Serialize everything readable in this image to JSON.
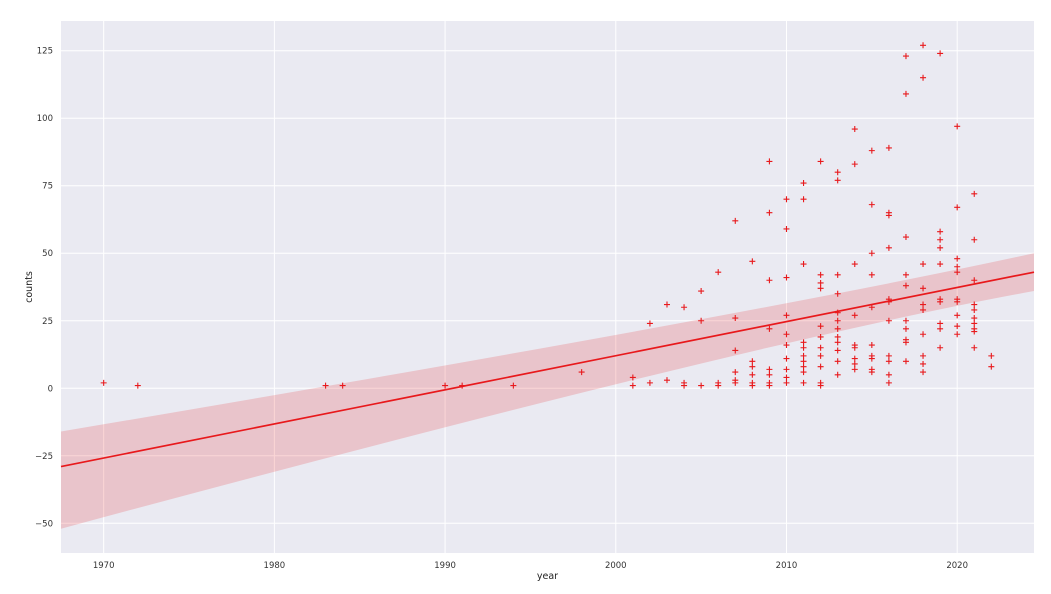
{
  "chart_data": {
    "type": "scatter",
    "xlabel": "year",
    "ylabel": "counts",
    "xlim": [
      1967.5,
      2024.5
    ],
    "ylim": [
      -61,
      136
    ],
    "x_ticks": [
      1970,
      1980,
      1990,
      2000,
      2010,
      2020
    ],
    "y_ticks": [
      -50,
      -25,
      0,
      25,
      50,
      75,
      100,
      125
    ],
    "grid": true,
    "marker": "+",
    "colors": {
      "marker": "#e8191c",
      "line": "#e8191c",
      "background": "#eaeaf2",
      "grid": "#ffffff"
    },
    "regression": {
      "x": [
        1967.5,
        2024.5
      ],
      "y": [
        -29,
        43
      ],
      "ci_lower": [
        -52,
        36
      ],
      "ci_upper": [
        -16,
        50
      ]
    },
    "points": [
      [
        1970,
        2
      ],
      [
        1972,
        1
      ],
      [
        1983,
        1
      ],
      [
        1984,
        1
      ],
      [
        1990,
        1
      ],
      [
        1991,
        1
      ],
      [
        1994,
        1
      ],
      [
        1998,
        6
      ],
      [
        2001,
        4
      ],
      [
        2001,
        1
      ],
      [
        2002,
        24
      ],
      [
        2002,
        2
      ],
      [
        2003,
        31
      ],
      [
        2003,
        3
      ],
      [
        2004,
        30
      ],
      [
        2004,
        2
      ],
      [
        2004,
        1
      ],
      [
        2005,
        36
      ],
      [
        2005,
        25
      ],
      [
        2005,
        1
      ],
      [
        2006,
        43
      ],
      [
        2006,
        2
      ],
      [
        2006,
        1
      ],
      [
        2007,
        62
      ],
      [
        2007,
        26
      ],
      [
        2007,
        14
      ],
      [
        2007,
        6
      ],
      [
        2007,
        3
      ],
      [
        2007,
        2
      ],
      [
        2008,
        47
      ],
      [
        2008,
        10
      ],
      [
        2008,
        8
      ],
      [
        2008,
        5
      ],
      [
        2008,
        2
      ],
      [
        2008,
        1
      ],
      [
        2009,
        84
      ],
      [
        2009,
        65
      ],
      [
        2009,
        40
      ],
      [
        2009,
        22
      ],
      [
        2009,
        7
      ],
      [
        2009,
        5
      ],
      [
        2009,
        2
      ],
      [
        2009,
        1
      ],
      [
        2010,
        70
      ],
      [
        2010,
        59
      ],
      [
        2010,
        41
      ],
      [
        2010,
        27
      ],
      [
        2010,
        20
      ],
      [
        2010,
        16
      ],
      [
        2010,
        11
      ],
      [
        2010,
        7
      ],
      [
        2010,
        4
      ],
      [
        2010,
        2
      ],
      [
        2011,
        76
      ],
      [
        2011,
        70
      ],
      [
        2011,
        46
      ],
      [
        2011,
        17
      ],
      [
        2011,
        15
      ],
      [
        2011,
        12
      ],
      [
        2011,
        10
      ],
      [
        2011,
        8
      ],
      [
        2011,
        6
      ],
      [
        2011,
        2
      ],
      [
        2012,
        84
      ],
      [
        2012,
        42
      ],
      [
        2012,
        39
      ],
      [
        2012,
        37
      ],
      [
        2012,
        23
      ],
      [
        2012,
        19
      ],
      [
        2012,
        15
      ],
      [
        2012,
        12
      ],
      [
        2012,
        8
      ],
      [
        2012,
        2
      ],
      [
        2012,
        1
      ],
      [
        2013,
        80
      ],
      [
        2013,
        77
      ],
      [
        2013,
        42
      ],
      [
        2013,
        35
      ],
      [
        2013,
        28
      ],
      [
        2013,
        25
      ],
      [
        2013,
        22
      ],
      [
        2013,
        19
      ],
      [
        2013,
        17
      ],
      [
        2013,
        14
      ],
      [
        2013,
        10
      ],
      [
        2013,
        5
      ],
      [
        2014,
        96
      ],
      [
        2014,
        83
      ],
      [
        2014,
        46
      ],
      [
        2014,
        27
      ],
      [
        2014,
        16
      ],
      [
        2014,
        15
      ],
      [
        2014,
        11
      ],
      [
        2014,
        9
      ],
      [
        2014,
        7
      ],
      [
        2015,
        88
      ],
      [
        2015,
        68
      ],
      [
        2015,
        50
      ],
      [
        2015,
        42
      ],
      [
        2015,
        30
      ],
      [
        2015,
        16
      ],
      [
        2015,
        12
      ],
      [
        2015,
        11
      ],
      [
        2015,
        7
      ],
      [
        2015,
        6
      ],
      [
        2016,
        89
      ],
      [
        2016,
        65
      ],
      [
        2016,
        64
      ],
      [
        2016,
        52
      ],
      [
        2016,
        33
      ],
      [
        2016,
        32
      ],
      [
        2016,
        25
      ],
      [
        2016,
        12
      ],
      [
        2016,
        10
      ],
      [
        2016,
        5
      ],
      [
        2016,
        2
      ],
      [
        2017,
        123
      ],
      [
        2017,
        109
      ],
      [
        2017,
        56
      ],
      [
        2017,
        42
      ],
      [
        2017,
        38
      ],
      [
        2017,
        25
      ],
      [
        2017,
        22
      ],
      [
        2017,
        18
      ],
      [
        2017,
        17
      ],
      [
        2017,
        10
      ],
      [
        2018,
        127
      ],
      [
        2018,
        115
      ],
      [
        2018,
        46
      ],
      [
        2018,
        37
      ],
      [
        2018,
        31
      ],
      [
        2018,
        29
      ],
      [
        2018,
        20
      ],
      [
        2018,
        12
      ],
      [
        2018,
        9
      ],
      [
        2018,
        6
      ],
      [
        2019,
        124
      ],
      [
        2019,
        58
      ],
      [
        2019,
        55
      ],
      [
        2019,
        52
      ],
      [
        2019,
        46
      ],
      [
        2019,
        33
      ],
      [
        2019,
        32
      ],
      [
        2019,
        24
      ],
      [
        2019,
        22
      ],
      [
        2019,
        15
      ],
      [
        2020,
        97
      ],
      [
        2020,
        67
      ],
      [
        2020,
        48
      ],
      [
        2020,
        45
      ],
      [
        2020,
        43
      ],
      [
        2020,
        33
      ],
      [
        2020,
        32
      ],
      [
        2020,
        27
      ],
      [
        2020,
        23
      ],
      [
        2020,
        20
      ],
      [
        2021,
        72
      ],
      [
        2021,
        55
      ],
      [
        2021,
        40
      ],
      [
        2021,
        31
      ],
      [
        2021,
        29
      ],
      [
        2021,
        26
      ],
      [
        2021,
        24
      ],
      [
        2021,
        22
      ],
      [
        2021,
        21
      ],
      [
        2021,
        15
      ],
      [
        2022,
        12
      ],
      [
        2022,
        8
      ]
    ]
  }
}
